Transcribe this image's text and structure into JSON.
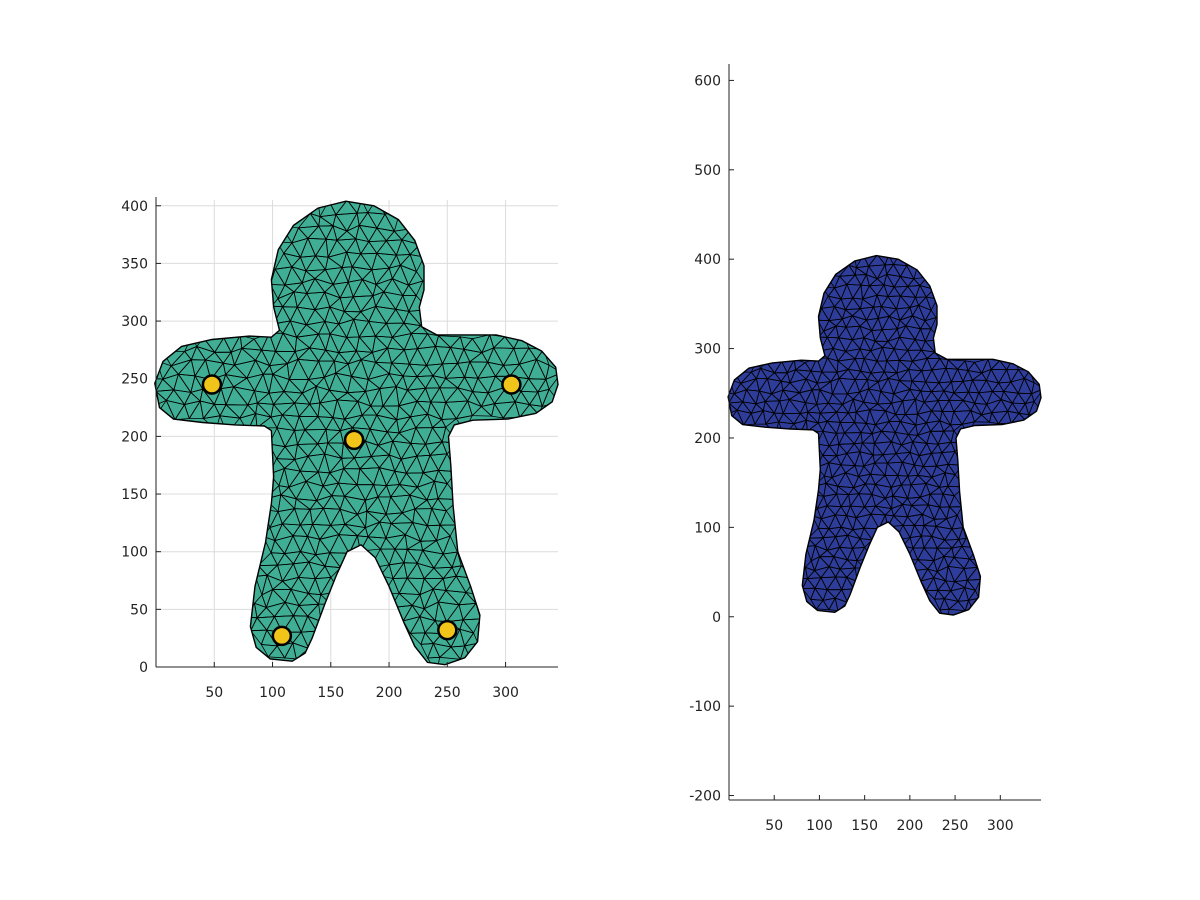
{
  "chart_data": [
    {
      "type": "mesh",
      "grid": true,
      "xlim": [
        0,
        345
      ],
      "ylim": [
        0,
        405
      ],
      "xticks": [
        50,
        100,
        150,
        200,
        250,
        300
      ],
      "yticks": [
        0,
        50,
        100,
        150,
        200,
        250,
        300,
        350,
        400
      ],
      "fill_color": "#3fae94",
      "marker_color": "#f0c419",
      "points": [
        {
          "x": 48,
          "y": 245
        },
        {
          "x": 305,
          "y": 245
        },
        {
          "x": 170,
          "y": 197
        },
        {
          "x": 108,
          "y": 27
        },
        {
          "x": 250,
          "y": 32
        }
      ]
    },
    {
      "type": "mesh",
      "grid": false,
      "xlim": [
        0,
        345
      ],
      "ylim": [
        -205,
        615
      ],
      "xticks": [
        50,
        100,
        150,
        200,
        250,
        300
      ],
      "yticks": [
        -200,
        -100,
        0,
        100,
        200,
        300,
        400,
        500,
        600
      ],
      "colormap": [
        "#2e2f7a",
        "#2e3d9a",
        "#1f63c8",
        "#2e8ed8",
        "#9bc46a",
        "#f0c240",
        "#f7f023"
      ],
      "hot_region": "left-arm"
    }
  ]
}
